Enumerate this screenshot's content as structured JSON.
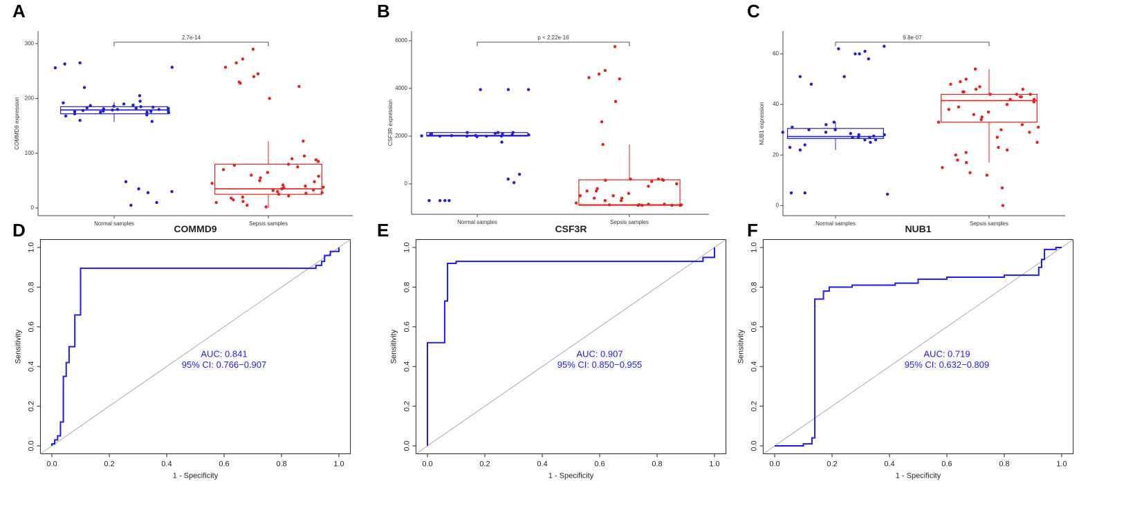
{
  "chart_data": [
    {
      "type": "box",
      "letter": "A",
      "ylabel": "COMMD9 expression",
      "annotation": "2.7e-14",
      "categories": [
        "Normal samples",
        "Sepsis samples"
      ],
      "colors": [
        "#1f1fd8",
        "#e8201c"
      ],
      "ylim": [
        -14,
        323
      ],
      "yticks": [
        0,
        100,
        200,
        300
      ],
      "box": [
        {
          "whislo": 157,
          "q1": 172,
          "med": 179,
          "q3": 185,
          "whishi": 193
        },
        {
          "whislo": 0,
          "q1": 25,
          "med": 35,
          "q3": 80,
          "whishi": 122
        }
      ],
      "points": [
        [
          178,
          180,
          175,
          182,
          185,
          176,
          190,
          172,
          183,
          179,
          181,
          168,
          186,
          177,
          195,
          174,
          205,
          158,
          188,
          180,
          170,
          184,
          160,
          192,
          176,
          220,
          256,
          263,
          265,
          257,
          10,
          5,
          35,
          48,
          28,
          30,
          182,
          178,
          175,
          187
        ],
        [
          290,
          272,
          265,
          257,
          245,
          240,
          230,
          228,
          222,
          200,
          122,
          95,
          90,
          85,
          80,
          78,
          70,
          65,
          60,
          55,
          50,
          45,
          40,
          38,
          35,
          33,
          30,
          28,
          25,
          22,
          20,
          18,
          15,
          12,
          10,
          5,
          2,
          42,
          37,
          48,
          58,
          27,
          32,
          75,
          88
        ]
      ]
    },
    {
      "type": "box",
      "letter": "B",
      "ylabel": "CSF3R expression",
      "annotation": "p < 2.22e-16",
      "categories": [
        "Normal samples",
        "Sepsis samples"
      ],
      "colors": [
        "#1f1fd8",
        "#e8201c"
      ],
      "ylim": [
        -1275,
        6400
      ],
      "yticks": [
        0,
        2000,
        4000,
        6000
      ],
      "box": [
        {
          "whislo": 1900,
          "q1": 2000,
          "med": 2030,
          "q3": 2150,
          "whishi": 2180
        },
        {
          "whislo": -900,
          "q1": -900,
          "med": -880,
          "q3": 170,
          "whishi": 1650
        }
      ],
      "points": [
        [
          3950,
          3950,
          3950,
          2150,
          2100,
          2050,
          2000,
          2000,
          2020,
          2030,
          2150,
          2100,
          1980,
          2000,
          1750,
          2050,
          2000,
          2150,
          2120,
          400,
          200,
          50,
          -700,
          -700,
          -700,
          -700,
          2010,
          2080
        ],
        [
          5750,
          4750,
          4600,
          4450,
          4400,
          3450,
          2600,
          1650,
          200,
          200,
          180,
          150,
          100,
          0,
          -100,
          -200,
          -300,
          -400,
          -500,
          -600,
          -700,
          -800,
          -850,
          -880,
          -900,
          -900,
          -900,
          -900,
          -880,
          -850,
          -700,
          -600,
          -300,
          150,
          -500,
          -880
        ]
      ]
    },
    {
      "type": "box",
      "letter": "C",
      "ylabel": "NUB1 expression",
      "annotation": "9.8e-07",
      "categories": [
        "Normal samples",
        "Sepsis samples"
      ],
      "colors": [
        "#1f1fd8",
        "#e8201c"
      ],
      "ylim": [
        -4,
        69
      ],
      "yticks": [
        0,
        20,
        40,
        60
      ],
      "box": [
        {
          "whislo": 22,
          "q1": 26.5,
          "med": 27.3,
          "q3": 30.5,
          "whishi": 33
        },
        {
          "whislo": 17,
          "q1": 33,
          "med": 41.5,
          "q3": 44,
          "whishi": 54
        }
      ],
      "points": [
        [
          63,
          62,
          61,
          60,
          60,
          58,
          51,
          51,
          48,
          33,
          32,
          31,
          30,
          29,
          28,
          28,
          27,
          27,
          27,
          26,
          26,
          25,
          24,
          23,
          22,
          30,
          29,
          5,
          5,
          4.5,
          27.5,
          28.5
        ],
        [
          54,
          50,
          49,
          48,
          47,
          46,
          45,
          45,
          44,
          44,
          43,
          43,
          42,
          41,
          40,
          39,
          38,
          37,
          36,
          35,
          34,
          33,
          32,
          31,
          30,
          29,
          27,
          25,
          23,
          22,
          21,
          20,
          18,
          17,
          15,
          13,
          12,
          7,
          0,
          44,
          42,
          46
        ]
      ]
    },
    {
      "type": "line",
      "letter": "D",
      "title": "COMMD9",
      "xlabel": "1 - Specificity",
      "ylabel": "Sensitivity",
      "annotations": [
        "AUC: 0.841",
        "95% CI: 0.766−0.907"
      ],
      "color": "#1a1aff",
      "xlim": [
        0,
        1
      ],
      "ylim": [
        0,
        1
      ],
      "xticks": [
        {
          "value": 0,
          "label": "0.0"
        },
        0.2,
        0.4,
        0.6,
        0.8,
        {
          "value": 1,
          "label": "1.0"
        }
      ],
      "yticks": [
        {
          "value": 0,
          "label": "0.0"
        },
        0.2,
        0.4,
        0.6,
        0.8,
        {
          "value": 1,
          "label": "1.0"
        }
      ],
      "x": [
        0,
        0,
        0.01,
        0.01,
        0.02,
        0.02,
        0.03,
        0.03,
        0.04,
        0.04,
        0.05,
        0.05,
        0.06,
        0.06,
        0.08,
        0.08,
        0.1,
        0.1,
        0.92,
        0.92,
        0.94,
        0.94,
        0.95,
        0.95,
        0.97,
        0.97,
        1,
        1
      ],
      "y": [
        0,
        0.01,
        0.01,
        0.03,
        0.03,
        0.05,
        0.05,
        0.12,
        0.12,
        0.35,
        0.35,
        0.42,
        0.42,
        0.5,
        0.5,
        0.66,
        0.66,
        0.895,
        0.895,
        0.91,
        0.91,
        0.93,
        0.93,
        0.96,
        0.96,
        0.98,
        0.98,
        1
      ]
    },
    {
      "type": "line",
      "letter": "E",
      "title": "CSF3R",
      "xlabel": "1 - Specificity",
      "ylabel": "Sensitivity",
      "annotations": [
        "AUC: 0.907",
        "95% CI: 0.850−0.955"
      ],
      "color": "#1a1aff",
      "xlim": [
        0,
        1
      ],
      "ylim": [
        0,
        1
      ],
      "xticks": [
        {
          "value": 0,
          "label": "0.0"
        },
        0.2,
        0.4,
        0.6,
        0.8,
        {
          "value": 1,
          "label": "1.0"
        }
      ],
      "yticks": [
        {
          "value": 0,
          "label": "0.0"
        },
        0.2,
        0.4,
        0.6,
        0.8,
        {
          "value": 1,
          "label": "1.0"
        }
      ],
      "x": [
        0,
        0,
        0.06,
        0.06,
        0.07,
        0.07,
        0.1,
        0.1,
        0.96,
        0.96,
        1,
        1
      ],
      "y": [
        0,
        0.52,
        0.52,
        0.73,
        0.73,
        0.92,
        0.92,
        0.93,
        0.93,
        0.95,
        0.95,
        1
      ]
    },
    {
      "type": "line",
      "letter": "F",
      "title": "NUB1",
      "xlabel": "1 - Specificity",
      "ylabel": "Sensitivity",
      "annotations": [
        "AUC: 0.719",
        "95% CI: 0.632−0.809"
      ],
      "color": "#1a1aff",
      "xlim": [
        0,
        1
      ],
      "ylim": [
        0,
        1
      ],
      "xticks": [
        {
          "value": 0,
          "label": "0.0"
        },
        0.2,
        0.4,
        0.6,
        0.8,
        {
          "value": 1,
          "label": "1.0"
        }
      ],
      "yticks": [
        {
          "value": 0,
          "label": "0.0"
        },
        0.2,
        0.4,
        0.6,
        0.8,
        {
          "value": 1,
          "label": "1.0"
        }
      ],
      "x": [
        0,
        0.1,
        0.1,
        0.13,
        0.13,
        0.14,
        0.14,
        0.17,
        0.17,
        0.19,
        0.19,
        0.27,
        0.27,
        0.42,
        0.42,
        0.5,
        0.5,
        0.6,
        0.6,
        0.8,
        0.8,
        0.92,
        0.92,
        0.93,
        0.93,
        0.94,
        0.94,
        0.98,
        0.98,
        1
      ],
      "y": [
        0,
        0,
        0.01,
        0.01,
        0.04,
        0.04,
        0.74,
        0.74,
        0.78,
        0.78,
        0.8,
        0.8,
        0.81,
        0.81,
        0.82,
        0.82,
        0.84,
        0.84,
        0.85,
        0.85,
        0.86,
        0.86,
        0.9,
        0.9,
        0.94,
        0.94,
        0.99,
        0.99,
        1,
        1
      ]
    }
  ]
}
